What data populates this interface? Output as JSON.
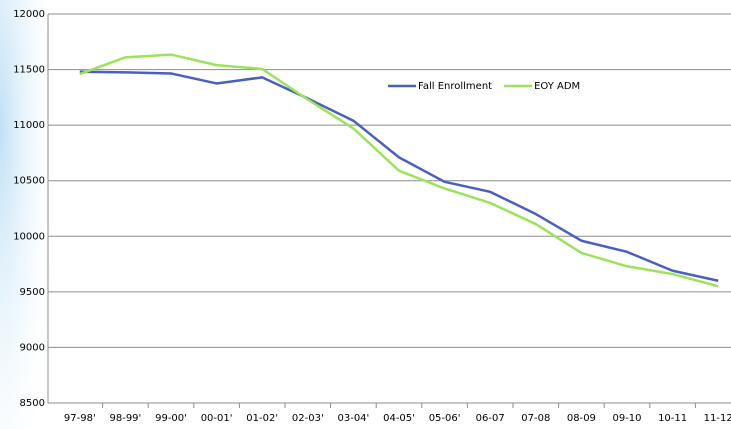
{
  "chart_data": {
    "type": "line",
    "categories": [
      "97-98'",
      "98-99'",
      "99-00'",
      "00-01'",
      "01-02'",
      "02-03'",
      "03-04'",
      "04-05'",
      "05-06'",
      "06-07",
      "07-08",
      "08-09",
      "09-10",
      "10-11",
      "11-12"
    ],
    "series": [
      {
        "name": "Fall Enrollment",
        "color": "#4a5fbf",
        "values": [
          11480,
          11475,
          11465,
          11375,
          11430,
          11240,
          11040,
          10710,
          10490,
          10400,
          10200,
          9960,
          9860,
          9690,
          9600
        ]
      },
      {
        "name": "EOY ADM",
        "color": "#9be45a",
        "values": [
          11460,
          11610,
          11635,
          11540,
          11505,
          11230,
          10970,
          10590,
          10430,
          10300,
          10110,
          9850,
          9730,
          9660,
          9550
        ]
      }
    ],
    "ylim": [
      8500,
      12000
    ],
    "yticks": [
      8500,
      9000,
      9500,
      10000,
      10500,
      11000,
      11500,
      12000
    ],
    "grid": true,
    "legend": "top-center"
  }
}
